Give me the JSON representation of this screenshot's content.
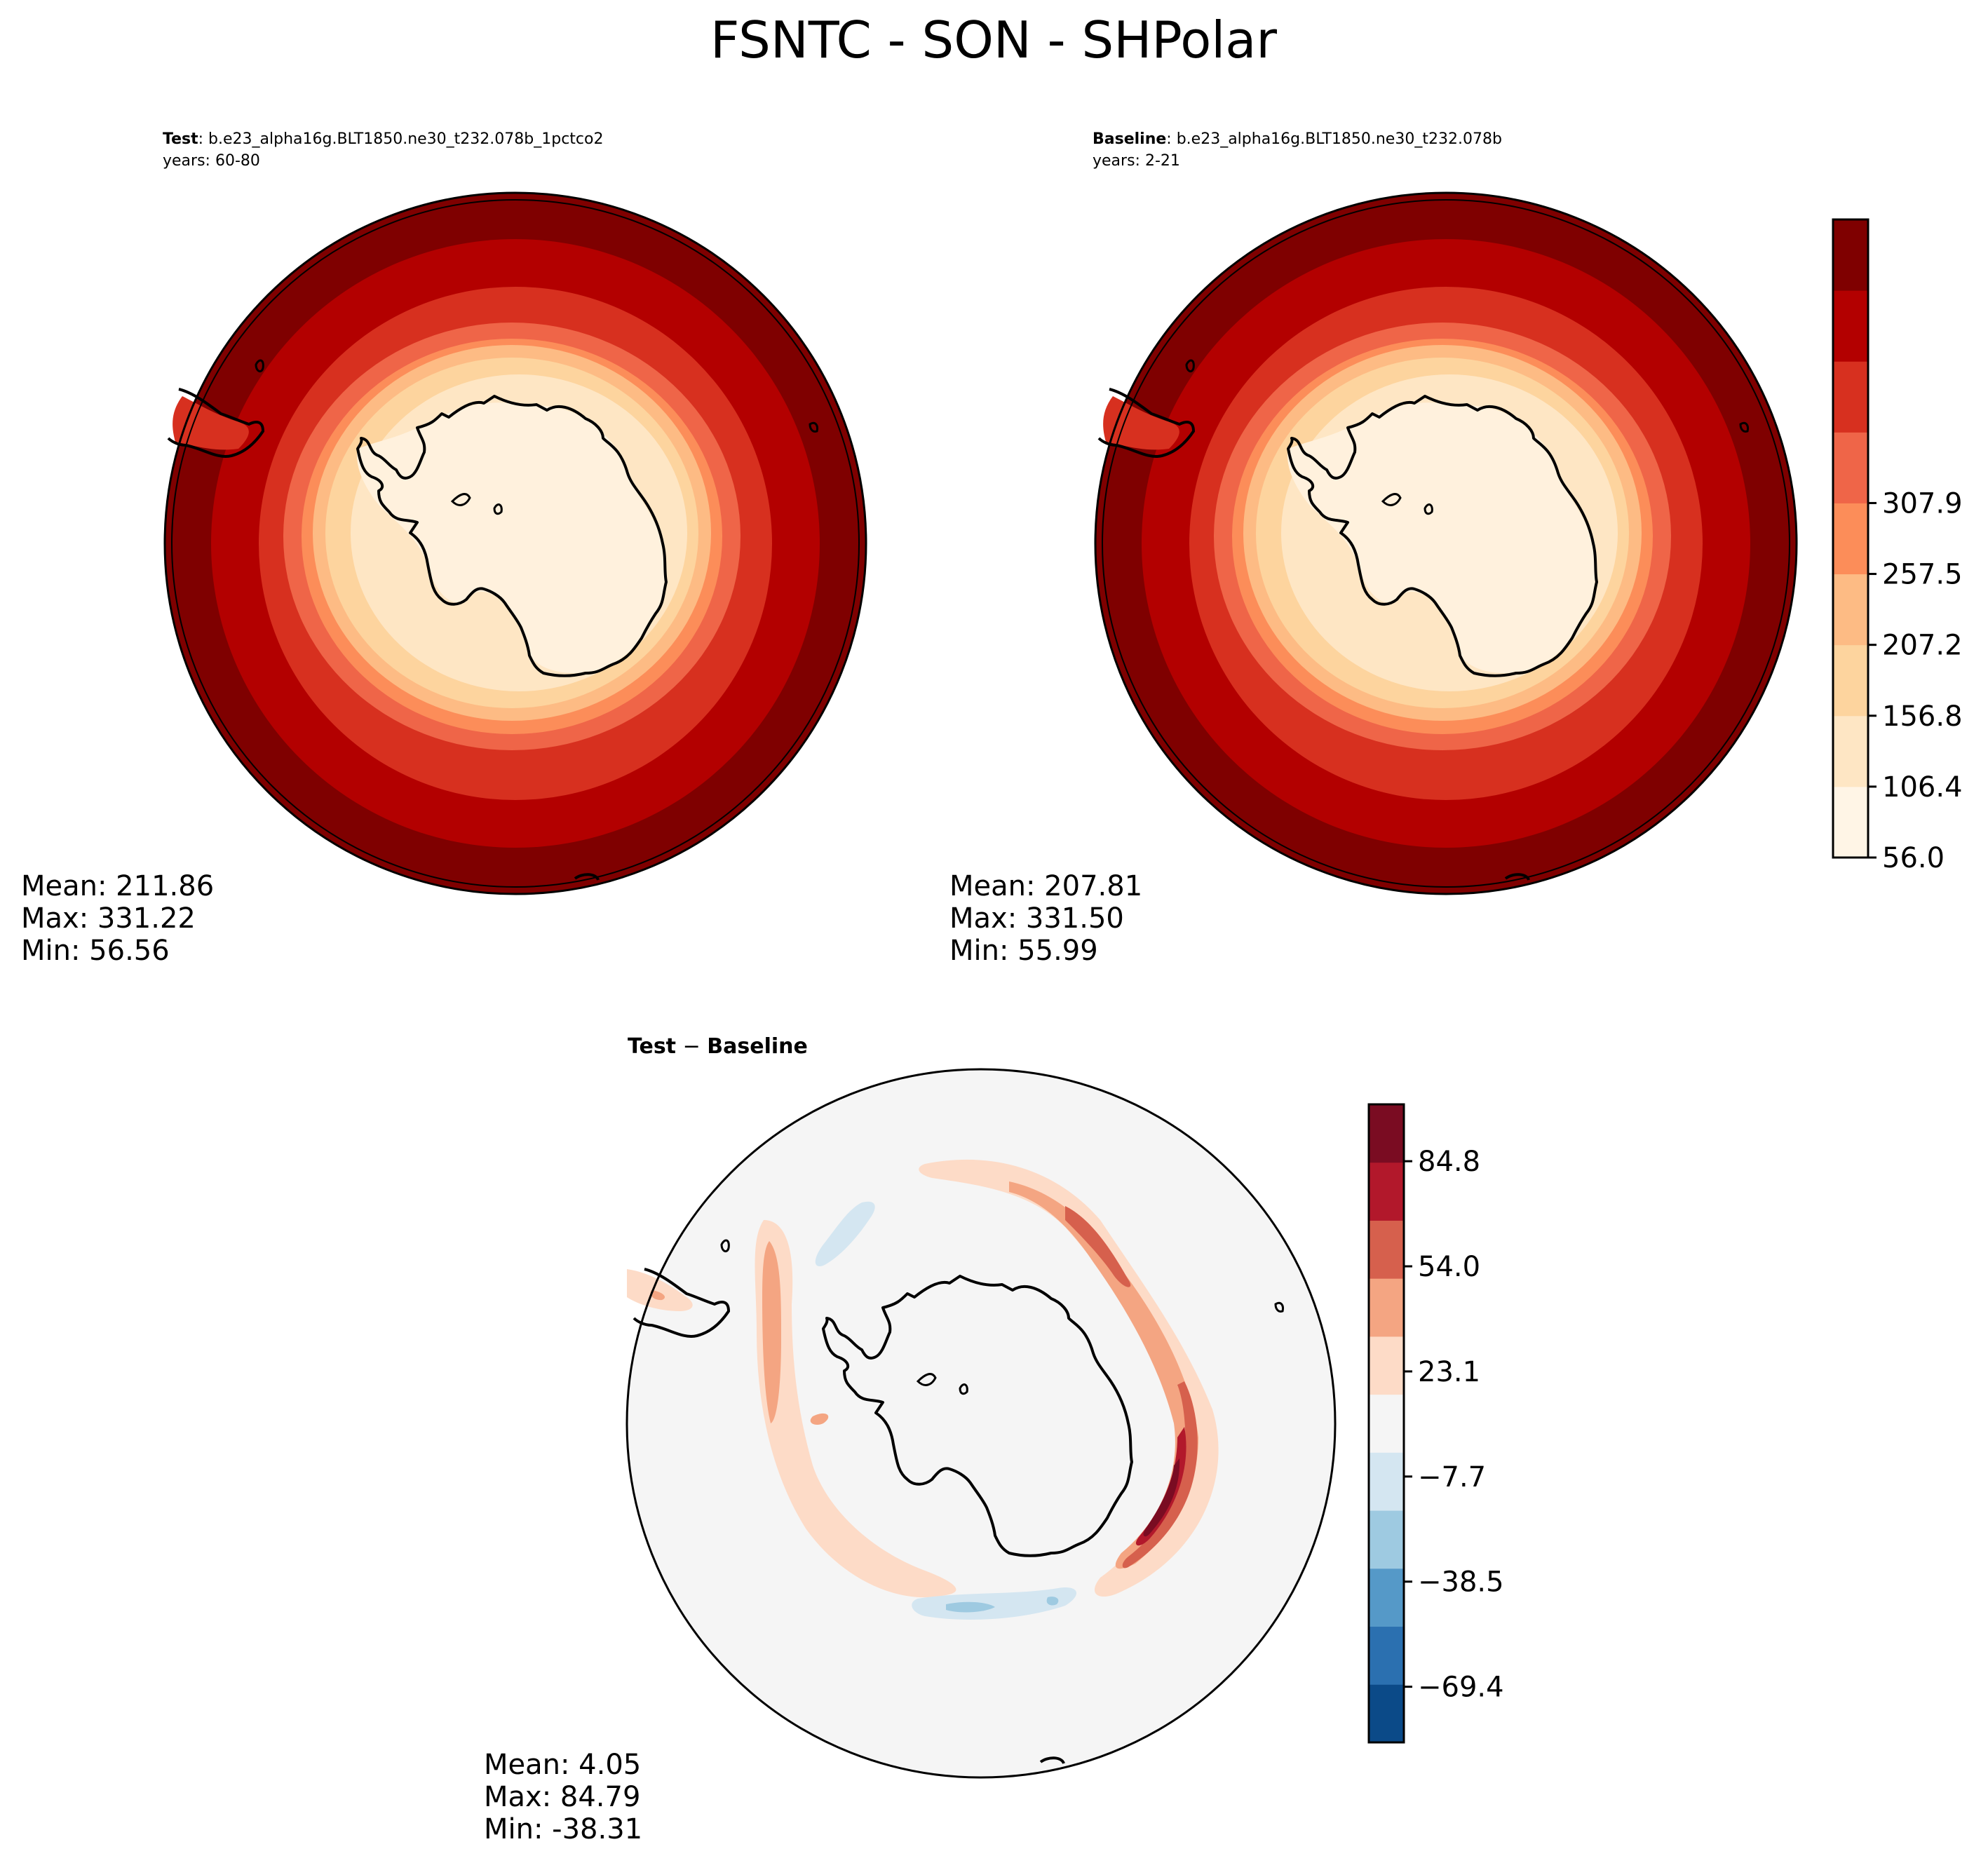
{
  "figure": {
    "title": "FSNTC - SON - SHPolar"
  },
  "panels": {
    "test": {
      "label": "Test",
      "case": ": b.e23_alpha16g.BLT1850.ne30_t232.078b_1pctco2",
      "years": "years: 60-80",
      "stats": {
        "mean": "Mean: 211.86",
        "max": "Max: 331.22",
        "min": "Min: 56.56"
      }
    },
    "baseline": {
      "label": "Baseline",
      "case": ": b.e23_alpha16g.BLT1850.ne30_t232.078b",
      "years": "years: 2-21",
      "stats": {
        "mean": "Mean: 207.81",
        "max": "Max: 331.50",
        "min": "Min: 55.99"
      }
    },
    "diff": {
      "label_a": "Test",
      "label_op": " − ",
      "label_b": "Baseline",
      "stats": {
        "mean": "Mean:  4.05",
        "max": "Max: 84.79",
        "min": "Min: -38.31"
      }
    }
  },
  "colorbars": {
    "main": {
      "ticks": [
        "56.0",
        "106.4",
        "156.8",
        "207.2",
        "257.5",
        "307.9"
      ],
      "colors": [
        "#fff5e6",
        "#fee6c4",
        "#fdd49e",
        "#fdbb84",
        "#fc8d59",
        "#ef6548",
        "#d7301f",
        "#b30000",
        "#7f0000"
      ]
    },
    "diff": {
      "ticks": [
        "−69.4",
        "−38.5",
        "−7.7",
        "23.1",
        "54.0",
        "84.8"
      ],
      "colors": [
        "#0b4a88",
        "#2b70b0",
        "#5599c8",
        "#9ecae1",
        "#d4e6f1",
        "#f5f5f5",
        "#fddbc7",
        "#f4a582",
        "#d6604d",
        "#b2182b",
        "#7a0c22"
      ]
    }
  },
  "chart_data": {
    "type": "heatmap",
    "title": "FSNTC - SON - SHPolar",
    "variable": "FSNTC",
    "season": "SON",
    "region": "SHPolar",
    "series": [
      {
        "name": "Test",
        "mean": 211.86,
        "max": 331.22,
        "min": 56.56,
        "range": [
          56.0,
          331.22
        ]
      },
      {
        "name": "Baseline",
        "mean": 207.81,
        "max": 331.5,
        "min": 55.99,
        "range": [
          56.0,
          331.5
        ]
      },
      {
        "name": "Test - Baseline",
        "mean": 4.05,
        "max": 84.79,
        "min": -38.31,
        "range": [
          -84.8,
          84.8
        ]
      }
    ],
    "colorbar_main_levels": [
      56.0,
      106.4,
      156.8,
      207.2,
      257.5,
      307.9
    ],
    "colorbar_diff_levels": [
      -69.4,
      -38.5,
      -7.7,
      23.1,
      54.0,
      84.8
    ]
  }
}
